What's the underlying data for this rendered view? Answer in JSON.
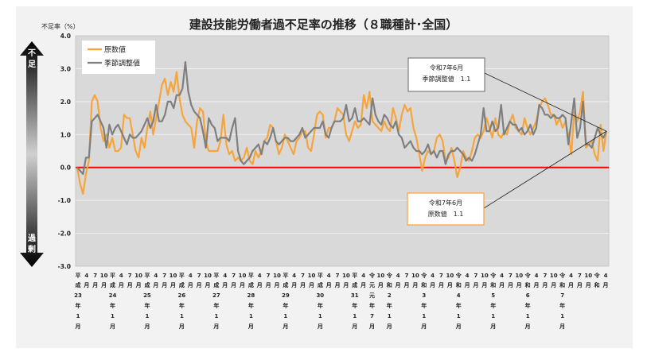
{
  "chart_data": {
    "type": "line",
    "title": "建設技能労働者過不足率の推移（８職種計･全国）",
    "ylabel": "不足率（%）",
    "ylim": [
      -3.0,
      4.0
    ],
    "yticks": [
      "4.0",
      "3.0",
      "2.0",
      "1.0",
      "0.0",
      "-1.0",
      "-2.0",
      "-3.0"
    ],
    "grid": true,
    "legend_position": "top-left",
    "reference_line": {
      "value": 0.0,
      "color": "#ff0000"
    },
    "arrow": {
      "top_label": [
        "不",
        "足"
      ],
      "bottom_label": [
        "過",
        "剰"
      ]
    },
    "x_month_labels": [
      "平",
      "4",
      "7",
      "10",
      "平",
      "4",
      "7",
      "10",
      "平",
      "4",
      "7",
      "10",
      "平",
      "4",
      "7",
      "10",
      "平",
      "4",
      "7",
      "10",
      "平",
      "4",
      "7",
      "10",
      "平",
      "4",
      "7",
      "10",
      "平",
      "4",
      "7",
      "10",
      "平",
      "4",
      "令",
      "10",
      "令",
      "4",
      "7",
      "10",
      "令",
      "4",
      "7",
      "10",
      "令",
      "4",
      "7",
      "10",
      "令",
      "4",
      "7",
      "10",
      "令",
      "4",
      "7",
      "10",
      "令",
      "4",
      "7",
      "10",
      "令",
      "4"
    ],
    "x_month_suffix": [
      "成",
      "月",
      "月",
      "月",
      "成",
      "月",
      "月",
      "月",
      "成",
      "月",
      "月",
      "月",
      "成",
      "月",
      "月",
      "月",
      "成",
      "月",
      "月",
      "月",
      "成",
      "月",
      "月",
      "月",
      "成",
      "月",
      "月",
      "月",
      "成",
      "月",
      "月",
      "月",
      "成",
      "月",
      "元",
      "月",
      "和",
      "月",
      "月",
      "月",
      "和",
      "月",
      "月",
      "月",
      "和",
      "月",
      "月",
      "月",
      "和",
      "月",
      "月",
      "月",
      "和",
      "月",
      "月",
      "月",
      "和",
      "月",
      "月",
      "月",
      "和",
      "月"
    ],
    "year_labels": [
      {
        "index": 0,
        "lines": [
          "23",
          "年",
          "1",
          "月"
        ]
      },
      {
        "index": 4,
        "lines": [
          "24",
          "年",
          "1",
          "月"
        ]
      },
      {
        "index": 8,
        "lines": [
          "25",
          "年",
          "1",
          "月"
        ]
      },
      {
        "index": 12,
        "lines": [
          "26",
          "年",
          "1",
          "月"
        ]
      },
      {
        "index": 16,
        "lines": [
          "27",
          "年",
          "1",
          "月"
        ]
      },
      {
        "index": 20,
        "lines": [
          "28",
          "年",
          "1",
          "月"
        ]
      },
      {
        "index": 24,
        "lines": [
          "29",
          "年",
          "1",
          "月"
        ]
      },
      {
        "index": 28,
        "lines": [
          "30",
          "年",
          "1",
          "月"
        ]
      },
      {
        "index": 32,
        "lines": [
          "31",
          "年",
          "1",
          "月"
        ]
      },
      {
        "index": 34,
        "lines": [
          "元",
          "年",
          "7",
          "月"
        ]
      },
      {
        "index": 36,
        "lines": [
          "2",
          "年",
          "1",
          "月"
        ]
      },
      {
        "index": 40,
        "lines": [
          "3",
          "年",
          "1",
          "月"
        ]
      },
      {
        "index": 44,
        "lines": [
          "4",
          "年",
          "1",
          "月"
        ]
      },
      {
        "index": 48,
        "lines": [
          "5",
          "年",
          "1",
          "月"
        ]
      },
      {
        "index": 52,
        "lines": [
          "6",
          "年",
          "1",
          "月"
        ]
      },
      {
        "index": 56,
        "lines": [
          "7",
          "年",
          "1",
          "月"
        ]
      }
    ],
    "series": [
      {
        "name": "原数値",
        "color": "#f7a43a",
        "values": [
          0.0,
          -0.5,
          -0.8,
          -0.2,
          0.2,
          2.0,
          2.2,
          2.0,
          1.2,
          0.8,
          1.0,
          0.6,
          0.9,
          0.5,
          0.5,
          0.6,
          1.6,
          1.5,
          1.5,
          1.0,
          0.5,
          0.3,
          0.9,
          0.6,
          1.2,
          1.7,
          1.0,
          1.5,
          2.0,
          2.5,
          2.7,
          2.2,
          2.6,
          2.3,
          2.9,
          2.1,
          1.6,
          1.4,
          1.3,
          1.2,
          0.6,
          1.4,
          1.8,
          1.7,
          0.8,
          0.5,
          0.5,
          0.5,
          0.5,
          0.8,
          1.6,
          0.7,
          0.4,
          0.5,
          0.2,
          0.3,
          0.2,
          0.3,
          0.6,
          0.2,
          0.1,
          0.5,
          0.3,
          0.5,
          0.8,
          0.9,
          1.3,
          1.2,
          0.8,
          0.4,
          0.6,
          1.0,
          0.8,
          0.6,
          0.4,
          0.8,
          0.9,
          1.1,
          1.1,
          0.6,
          0.5,
          1.0,
          1.6,
          1.7,
          1.6,
          0.9,
          1.2,
          1.2,
          1.4,
          1.8,
          1.7,
          1.6,
          1.0,
          0.8,
          1.1,
          1.4,
          1.2,
          1.3,
          2.2,
          1.8,
          2.3,
          1.4,
          1.3,
          1.2,
          1.1,
          1.4,
          1.2,
          1.1,
          1.8,
          1.5,
          1.1,
          1.6,
          1.9,
          1.7,
          1.8,
          1.2,
          0.9,
          0.4,
          -0.1,
          0.3,
          0.5,
          0.4,
          0.5,
          0.9,
          1.0,
          0.8,
          0.2,
          0.3,
          0.6,
          0.2,
          -0.3,
          0.0,
          0.5,
          0.3,
          0.2,
          0.5,
          0.9,
          1.0,
          0.9,
          1.1,
          1.5,
          1.2,
          0.9,
          1.5,
          1.0,
          0.9,
          1.1,
          1.0,
          1.4,
          1.6,
          1.2,
          1.1,
          1.0,
          1.5,
          1.2,
          1.0,
          1.2,
          1.4,
          1.8,
          2.0,
          2.1,
          1.9,
          1.6,
          1.6,
          1.3,
          1.5,
          1.2,
          1.4,
          1.0,
          0.4,
          1.7,
          1.4,
          1.7,
          2.3,
          0.6,
          0.7,
          0.8,
          0.4,
          0.2,
          1.3,
          0.5,
          1.1
        ]
      },
      {
        "name": "季節調整値",
        "color": "#7f7f7f",
        "values": [
          0.0,
          -0.1,
          -0.2,
          0.3,
          0.3,
          1.4,
          1.5,
          1.6,
          1.4,
          1.2,
          0.6,
          1.3,
          1.0,
          1.2,
          1.3,
          1.1,
          0.9,
          0.7,
          1.0,
          0.9,
          0.9,
          1.0,
          1.1,
          1.3,
          1.5,
          1.2,
          1.4,
          1.9,
          1.4,
          1.4,
          1.6,
          2.0,
          2.0,
          1.8,
          2.2,
          2.2,
          2.4,
          3.2,
          2.3,
          1.9,
          1.7,
          1.6,
          1.5,
          1.1,
          0.6,
          1.5,
          1.3,
          1.2,
          0.8,
          0.9,
          0.9,
          0.9,
          0.8,
          1.2,
          1.5,
          0.5,
          0.2,
          0.1,
          0.2,
          0.3,
          0.5,
          0.6,
          0.7,
          0.4,
          0.8,
          0.7,
          0.9,
          1.2,
          0.8,
          0.7,
          0.8,
          0.9,
          0.9,
          0.8,
          0.8,
          0.9,
          1.0,
          1.2,
          0.9,
          1.0,
          1.1,
          1.2,
          1.2,
          1.2,
          1.4,
          1.0,
          0.9,
          1.2,
          1.4,
          1.4,
          1.4,
          1.5,
          1.9,
          1.4,
          1.5,
          1.8,
          1.4,
          1.4,
          1.5,
          1.4,
          1.3,
          2.1,
          1.6,
          1.4,
          1.3,
          1.6,
          1.5,
          1.3,
          1.2,
          1.4,
          1.0,
          0.9,
          0.6,
          0.7,
          0.8,
          0.6,
          0.5,
          0.5,
          0.4,
          0.5,
          0.7,
          0.4,
          0.5,
          0.3,
          0.5,
          0.5,
          0.1,
          0.4,
          0.5,
          0.5,
          0.6,
          0.5,
          0.4,
          0.2,
          0.3,
          0.2,
          0.4,
          0.7,
          1.0,
          1.8,
          1.1,
          1.1,
          1.4,
          1.1,
          1.2,
          1.9,
          1.0,
          1.2,
          1.4,
          1.3,
          1.3,
          1.1,
          1.2,
          1.0,
          1.1,
          1.3,
          1.0,
          1.2,
          1.9,
          1.8,
          1.6,
          1.6,
          1.5,
          1.6,
          1.5,
          1.5,
          1.6,
          1.5,
          0.7,
          1.4,
          2.1,
          0.9,
          1.2,
          2.0,
          0.7,
          0.7,
          0.6,
          0.9,
          1.2,
          1.0,
          0.9,
          1.1
        ]
      }
    ],
    "callouts": [
      {
        "lines": [
          "令和7年6月",
          "季節調整値　1.1"
        ],
        "series": 1
      },
      {
        "lines": [
          "令和7年6月",
          "原数値　1.1"
        ],
        "series": 0
      }
    ]
  }
}
